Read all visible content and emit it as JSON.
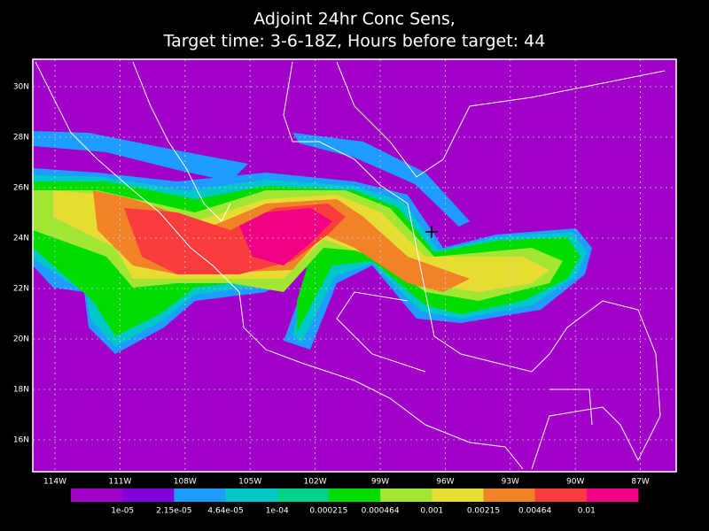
{
  "title": [
    "Adjoint 24hr Conc Sens,",
    "Target time: 3-6-18Z, Hours before target: 44"
  ],
  "map": {
    "background": "#a000c8",
    "lat_labels": [
      "30N",
      "28N",
      "26N",
      "24N",
      "22N",
      "20N",
      "18N",
      "16N"
    ],
    "lon_labels": [
      "114W",
      "111W",
      "108W",
      "105W",
      "102W",
      "99W",
      "96W",
      "93W",
      "90W",
      "87W"
    ]
  },
  "colorbar": {
    "colors": [
      "#a000c8",
      "#8200dc",
      "#1e9cff",
      "#00c8c8",
      "#00d28c",
      "#00dc00",
      "#a0e632",
      "#e6dc32",
      "#f08228",
      "#fa3c3c",
      "#f00082"
    ],
    "labels": [
      "1e-05",
      "2.15e-05",
      "4.64e-05",
      "1e-04",
      "0.000215",
      "0.000464",
      "0.001",
      "0.00215",
      "0.00464",
      "0.01"
    ]
  }
}
